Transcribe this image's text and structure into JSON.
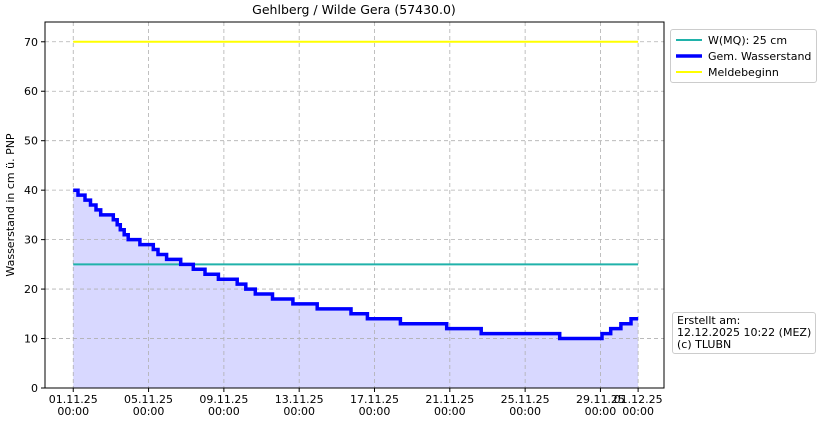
{
  "chart_data": {
    "type": "line",
    "title": "Gehlberg / Wilde Gera (57430.0)",
    "y_label": "Wasserstand in cm ü. PNP",
    "xlim": [
      "2025-10-30 12:00",
      "2025-12-02 09:00"
    ],
    "ylim": [
      0,
      74
    ],
    "yticks": [
      0,
      10,
      20,
      30,
      40,
      50,
      60,
      70
    ],
    "xticks": [
      {
        "value": "2025-11-01 00:00",
        "label": "01.11.25\n00:00"
      },
      {
        "value": "2025-11-05 00:00",
        "label": "05.11.25\n00:00"
      },
      {
        "value": "2025-11-09 00:00",
        "label": "09.11.25\n00:00"
      },
      {
        "value": "2025-11-13 00:00",
        "label": "13.11.25\n00:00"
      },
      {
        "value": "2025-11-17 00:00",
        "label": "17.11.25\n00:00"
      },
      {
        "value": "2025-11-21 00:00",
        "label": "21.11.25\n00:00"
      },
      {
        "value": "2025-11-25 00:00",
        "label": "25.11.25\n00:00"
      },
      {
        "value": "2025-11-29 00:00",
        "label": "29.11.25\n00:00"
      },
      {
        "value": "2025-12-01 00:00",
        "label": "01.12.25\n00:00"
      }
    ],
    "grid": true,
    "drawstyle": "steps-post",
    "fill_color": "#d8d8ff",
    "series": [
      {
        "name": "W(MQ): 25 cm",
        "color": "#20b2aa",
        "width": 2,
        "x": [
          "2025-11-01 00:00",
          "2025-12-01 00:00"
        ],
        "values": [
          25,
          25
        ]
      },
      {
        "name": "Gem. Wasserstand",
        "color": "#0000ff",
        "width": 3.5,
        "fill": true,
        "x": [
          "2025-11-01 00:00",
          "2025-11-01 06:00",
          "2025-11-01 15:00",
          "2025-11-01 22:00",
          "2025-11-02 05:00",
          "2025-11-02 11:00",
          "2025-11-03 03:00",
          "2025-11-03 08:00",
          "2025-11-03 12:00",
          "2025-11-03 17:00",
          "2025-11-03 22:00",
          "2025-11-04 13:00",
          "2025-11-05 06:00",
          "2025-11-05 12:00",
          "2025-11-05 23:00",
          "2025-11-06 17:00",
          "2025-11-07 09:00",
          "2025-11-08 00:00",
          "2025-11-08 17:00",
          "2025-11-09 17:00",
          "2025-11-10 04:00",
          "2025-11-10 16:00",
          "2025-11-11 14:00",
          "2025-11-12 16:00",
          "2025-11-13 23:00",
          "2025-11-15 18:00",
          "2025-11-16 15:00",
          "2025-11-18 09:00",
          "2025-11-20 20:00",
          "2025-11-22 16:00",
          "2025-11-26 20:00",
          "2025-11-29 02:00",
          "2025-11-29 13:00",
          "2025-11-30 02:00",
          "2025-11-30 15:00",
          "2025-12-01 00:00"
        ],
        "values": [
          40,
          39,
          38,
          37,
          36,
          35,
          34,
          33,
          32,
          31,
          30,
          29,
          28,
          27,
          26,
          25,
          24,
          23,
          22,
          21,
          20,
          19,
          18,
          17,
          16,
          15,
          14,
          13,
          12,
          11,
          10,
          11,
          12,
          13,
          14,
          14
        ]
      },
      {
        "name": "Meldebeginn",
        "color": "#ffff00",
        "width": 2,
        "x": [
          "2025-11-01 00:00",
          "2025-12-01 00:00"
        ],
        "values": [
          70,
          70
        ]
      }
    ],
    "annotation": "Erstellt am:\n12.12.2025 10:22 (MEZ)\n(c) TLUBN"
  }
}
